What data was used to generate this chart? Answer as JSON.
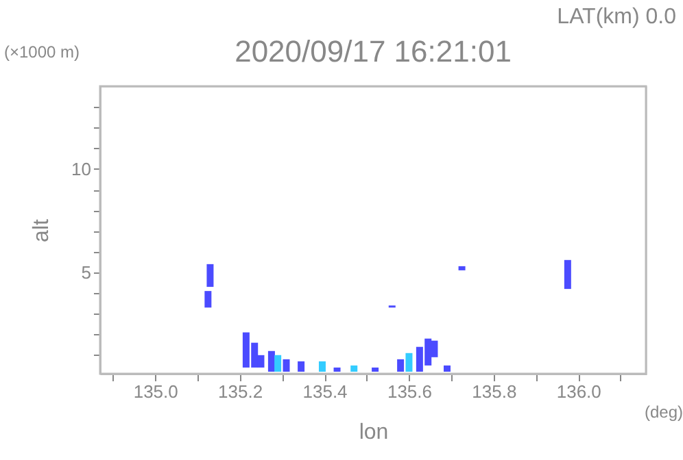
{
  "chart_data": {
    "type": "bar",
    "title": "2020/09/17 16:21:01",
    "subtitle": "LAT(km) 0.0",
    "xlabel": "lon",
    "ylabel": "alt",
    "annotations": [
      "(×1000 m)",
      "(deg)"
    ],
    "x": [
      135.125,
      135.13,
      135.215,
      135.235,
      135.25,
      135.275,
      135.29,
      135.31,
      135.345,
      135.395,
      135.43,
      135.47,
      135.52,
      135.56,
      135.58,
      135.6,
      135.625,
      135.645,
      135.66,
      135.69,
      135.725,
      135.975
    ],
    "base": [
      3.3,
      4.3,
      0.4,
      0.4,
      0.4,
      0.2,
      0.2,
      0.2,
      0.2,
      0.2,
      0.2,
      0.2,
      0.2,
      3.3,
      0.2,
      0.2,
      0.2,
      0.5,
      0.9,
      0.2,
      5.1,
      4.2
    ],
    "values": [
      0.8,
      1.1,
      1.7,
      1.2,
      0.6,
      1.0,
      0.8,
      0.6,
      0.5,
      0.5,
      0.2,
      0.3,
      0.2,
      0.1,
      0.6,
      0.9,
      1.2,
      1.3,
      0.8,
      0.3,
      0.2,
      1.4
    ],
    "colors": [
      "#4b4bff",
      "#4b4bff",
      "#4b4bff",
      "#4b4bff",
      "#4b4bff",
      "#4b4bff",
      "#33ccff",
      "#4b4bff",
      "#4b4bff",
      "#33ccff",
      "#4b4bff",
      "#33ccff",
      "#4b4bff",
      "#4b4bff",
      "#4b4bff",
      "#33ccff",
      "#4b4bff",
      "#4b4bff",
      "#4b4bff",
      "#4b4bff",
      "#4b4bff",
      "#4b4bff"
    ],
    "xlim": [
      134.87,
      136.16
    ],
    "xticks": [
      {
        "value": 134.9,
        "label": null
      },
      {
        "value": 135.0,
        "label": "135.0"
      },
      {
        "value": 135.1,
        "label": null
      },
      {
        "value": 135.2,
        "label": "135.2"
      },
      {
        "value": 135.3,
        "label": null
      },
      {
        "value": 135.4,
        "label": "135.4"
      },
      {
        "value": 135.5,
        "label": null
      },
      {
        "value": 135.6,
        "label": "135.6"
      },
      {
        "value": 135.7,
        "label": null
      },
      {
        "value": 135.8,
        "label": "135.8"
      },
      {
        "value": 135.9,
        "label": null
      },
      {
        "value": 136.0,
        "label": "136.0"
      },
      {
        "value": 136.1,
        "label": null
      }
    ],
    "ylim": [
      0.1,
      14
    ],
    "yticks": [
      {
        "value": 1,
        "label": null
      },
      {
        "value": 2,
        "label": null
      },
      {
        "value": 3,
        "label": null
      },
      {
        "value": 4,
        "label": null
      },
      5,
      {
        "value": 6,
        "label": null
      },
      {
        "value": 7,
        "label": null
      },
      {
        "value": 8,
        "label": null
      },
      {
        "value": 9,
        "label": null
      },
      10,
      {
        "value": 11,
        "label": null
      },
      {
        "value": 12,
        "label": null
      },
      {
        "value": 13,
        "label": null
      }
    ],
    "grid": false
  }
}
